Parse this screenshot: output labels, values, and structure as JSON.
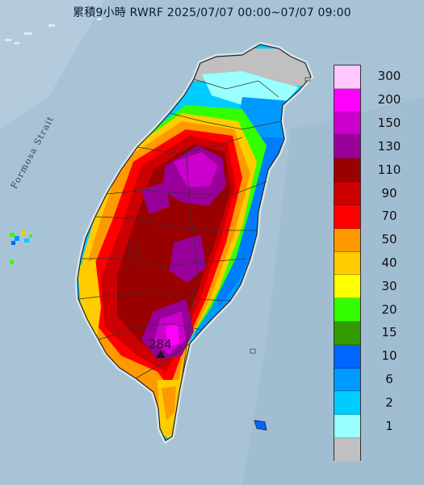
{
  "title": "累積9小時 RWRF 2025/07/07 00:00~07/07 09:00",
  "strait_label": "Formosa Strait",
  "max_value_label": "284",
  "legend": [
    {
      "label": "300",
      "color": "#ffc8ff"
    },
    {
      "label": "200",
      "color": "#ff00ff"
    },
    {
      "label": "150",
      "color": "#cc00cc"
    },
    {
      "label": "130",
      "color": "#990099"
    },
    {
      "label": "110",
      "color": "#990000"
    },
    {
      "label": "90",
      "color": "#cc0000"
    },
    {
      "label": "70",
      "color": "#ff0000"
    },
    {
      "label": "50",
      "color": "#ff9900"
    },
    {
      "label": "40",
      "color": "#ffcc00"
    },
    {
      "label": "30",
      "color": "#ffff00"
    },
    {
      "label": "20",
      "color": "#33ff00"
    },
    {
      "label": "15",
      "color": "#339900"
    },
    {
      "label": "10",
      "color": "#0066ff"
    },
    {
      "label": "6",
      "color": "#0099ff"
    },
    {
      "label": "2",
      "color": "#00ccff"
    },
    {
      "label": "1",
      "color": "#99ffff"
    },
    {
      "label": "",
      "color": "#c0c0c0"
    }
  ]
}
